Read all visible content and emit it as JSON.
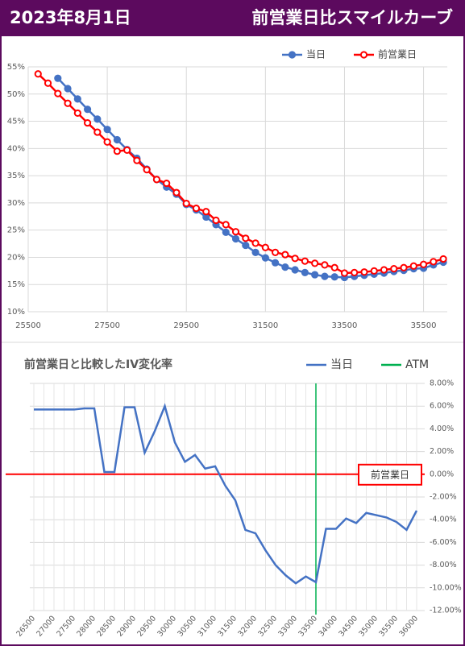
{
  "header": {
    "date": "2023年8月1日",
    "title": "前営業日比スマイルカーブ"
  },
  "chart_data": [
    {
      "type": "line",
      "series": [
        {
          "name": "当日",
          "color": "#4472c4",
          "marker_fill": "#4472c4",
          "x": [
            26250,
            26500,
            26750,
            27000,
            27250,
            27500,
            27750,
            28000,
            28250,
            28500,
            28750,
            29000,
            29250,
            29500,
            29750,
            30000,
            30250,
            30500,
            30750,
            31000,
            31250,
            31500,
            31750,
            32000,
            32250,
            32500,
            32750,
            33000,
            33250,
            33500,
            33750,
            34000,
            34250,
            34500,
            34750,
            35000,
            35250,
            35500,
            35750,
            36000
          ],
          "values": [
            52.9,
            51.0,
            49.1,
            47.2,
            45.4,
            43.5,
            41.6,
            39.8,
            38.2,
            36.2,
            34.3,
            32.9,
            31.6,
            29.7,
            28.7,
            27.4,
            26.0,
            24.6,
            23.4,
            22.2,
            20.9,
            19.9,
            19.0,
            18.2,
            17.7,
            17.2,
            16.8,
            16.5,
            16.4,
            16.3,
            16.5,
            16.7,
            16.9,
            17.1,
            17.4,
            17.6,
            17.9,
            18.0,
            18.6,
            19.1
          ]
        },
        {
          "name": "前営業日",
          "color": "#ff0000",
          "marker_fill": "#ffffff",
          "x": [
            25750,
            26000,
            26250,
            26500,
            26750,
            27000,
            27250,
            27500,
            27750,
            28000,
            28250,
            28500,
            28750,
            29000,
            29250,
            29500,
            29750,
            30000,
            30250,
            30500,
            30750,
            31000,
            31250,
            31500,
            31750,
            32000,
            32250,
            32500,
            32750,
            33000,
            33250,
            33500,
            33750,
            34000,
            34250,
            34500,
            34750,
            35000,
            35250,
            35500,
            35750,
            36000
          ],
          "values": [
            53.7,
            52.0,
            50.1,
            48.3,
            46.5,
            44.7,
            43.0,
            41.2,
            39.5,
            39.7,
            37.8,
            36.1,
            34.3,
            33.6,
            31.9,
            29.9,
            29.0,
            28.4,
            26.8,
            26.0,
            24.7,
            23.5,
            22.6,
            21.8,
            20.9,
            20.5,
            19.8,
            19.3,
            18.9,
            18.6,
            18.1,
            17.1,
            17.2,
            17.3,
            17.5,
            17.7,
            17.9,
            18.1,
            18.4,
            18.7,
            19.2,
            19.7
          ]
        }
      ],
      "xlim": [
        25500,
        36100
      ],
      "xticks": [
        25500,
        27500,
        29500,
        31500,
        33500,
        35500
      ],
      "ylim": [
        10,
        55
      ],
      "yticks": [
        {
          "value": 10,
          "label": "10%"
        },
        {
          "value": 15,
          "label": "15%"
        },
        {
          "value": 20,
          "label": "20%"
        },
        {
          "value": 25,
          "label": "25%"
        },
        {
          "value": 30,
          "label": "30%"
        },
        {
          "value": 35,
          "label": "35%"
        },
        {
          "value": 40,
          "label": "40%"
        },
        {
          "value": 45,
          "label": "45%"
        },
        {
          "value": 50,
          "label": "50%"
        },
        {
          "value": 55,
          "label": "55%"
        }
      ],
      "grid": true,
      "legend": "top"
    },
    {
      "type": "line",
      "title": "前営業日と比較したIV変化率",
      "x": [
        26500,
        26750,
        27000,
        27250,
        27500,
        27750,
        28000,
        28250,
        28500,
        28750,
        29000,
        29250,
        29500,
        29750,
        30000,
        30250,
        30500,
        30750,
        31000,
        31250,
        31500,
        31750,
        32000,
        32250,
        32500,
        32750,
        33000,
        33250,
        33500,
        33750,
        34000,
        34250,
        34500,
        34750,
        35000,
        35250,
        35500,
        35750,
        36000
      ],
      "series": [
        {
          "name": "当日",
          "color": "#4472c4",
          "values": [
            5.7,
            5.7,
            5.7,
            5.7,
            5.7,
            5.8,
            5.8,
            0.2,
            0.2,
            5.9,
            5.9,
            1.9,
            3.8,
            6.0,
            2.8,
            1.1,
            1.7,
            0.5,
            0.7,
            -1.0,
            -2.3,
            -4.9,
            -5.2,
            -6.7,
            -8.0,
            -8.9,
            -9.6,
            -9.0,
            -9.5,
            -4.8,
            -4.8,
            -3.9,
            -4.3,
            -3.4,
            -3.6,
            -3.8,
            -4.2,
            -4.9,
            -3.2
          ]
        }
      ],
      "vlines": [
        {
          "name": "ATM",
          "color": "#00b050",
          "x": 33500
        }
      ],
      "hlines": [
        {
          "label": "前営業日",
          "color": "#ff0000",
          "value": 0
        }
      ],
      "xlim": [
        26400,
        36200
      ],
      "xticks": [
        26500,
        27000,
        27500,
        28000,
        28500,
        29000,
        29500,
        30000,
        30500,
        31000,
        31500,
        32000,
        32500,
        33000,
        33500,
        34000,
        34500,
        35000,
        35500,
        36000
      ],
      "ylim": [
        -12,
        8
      ],
      "yticks": [
        {
          "value": -12,
          "label": "-12.00%"
        },
        {
          "value": -10,
          "label": "-10.00%"
        },
        {
          "value": -8,
          "label": "-8.00%"
        },
        {
          "value": -6,
          "label": "-6.00%"
        },
        {
          "value": -4,
          "label": "-4.00%"
        },
        {
          "value": -2,
          "label": "-2.00%"
        },
        {
          "value": 0,
          "label": "0.00%"
        },
        {
          "value": 2,
          "label": "2.00%"
        },
        {
          "value": 4,
          "label": "4.00%"
        },
        {
          "value": 6,
          "label": "6.00%"
        },
        {
          "value": 8,
          "label": "8.00%"
        }
      ],
      "y_axis_side": "right",
      "grid": true,
      "legend": "top-right"
    }
  ]
}
